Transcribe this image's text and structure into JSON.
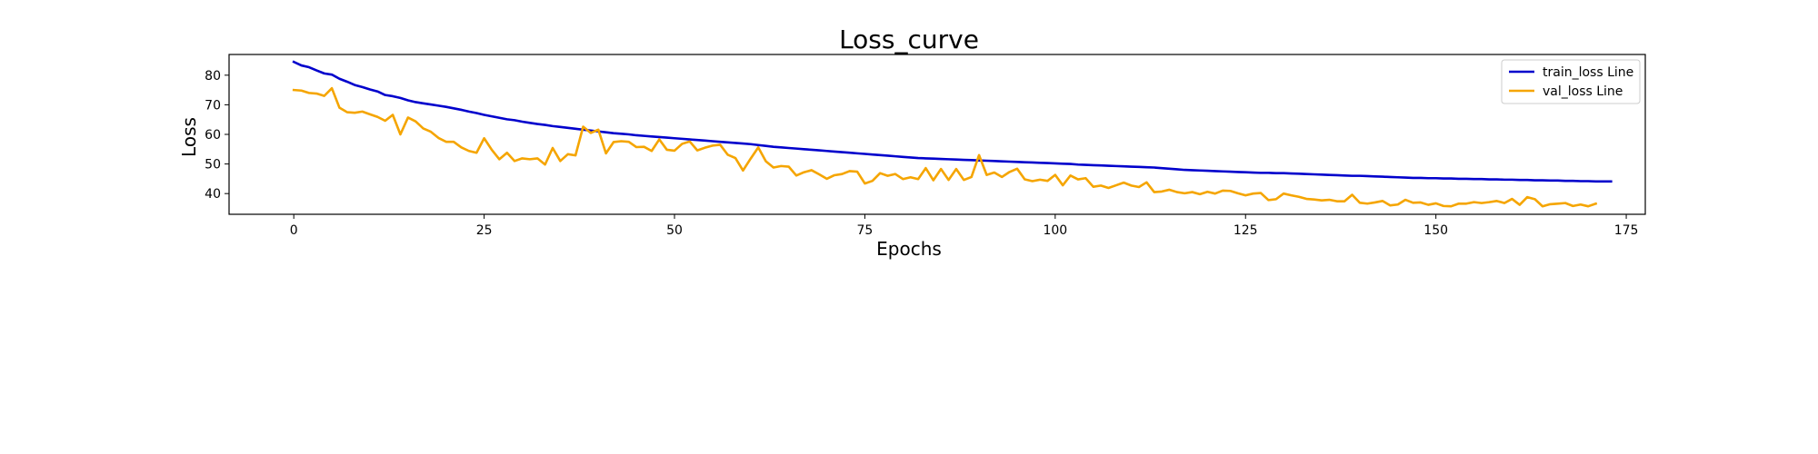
{
  "chart_data": {
    "type": "line",
    "title": "Loss_curve",
    "xlabel": "Epochs",
    "ylabel": "Loss",
    "xlim": [
      -8.5,
      177.5
    ],
    "ylim": [
      33,
      87
    ],
    "xticks": [
      0,
      25,
      50,
      75,
      100,
      125,
      150,
      175
    ],
    "yticks": [
      40,
      50,
      60,
      70,
      80
    ],
    "grid": false,
    "legend_position": "top-right",
    "series": [
      {
        "name": "train_loss Line",
        "color": "#0000cc",
        "values": [
          84.5,
          83.3,
          82.7,
          81.6,
          80.6,
          80.2,
          78.8,
          77.8,
          76.7,
          76.0,
          75.2,
          74.5,
          73.3,
          72.9,
          72.3,
          71.5,
          70.9,
          70.5,
          70.1,
          69.7,
          69.3,
          68.8,
          68.3,
          67.7,
          67.2,
          66.6,
          66.1,
          65.6,
          65.1,
          64.8,
          64.3,
          63.9,
          63.5,
          63.2,
          62.8,
          62.5,
          62.2,
          61.9,
          61.6,
          61.3,
          61.0,
          60.7,
          60.4,
          60.2,
          60.0,
          59.7,
          59.5,
          59.3,
          59.1,
          58.9,
          58.7,
          58.5,
          58.3,
          58.1,
          57.9,
          57.7,
          57.5,
          57.3,
          57.1,
          56.9,
          56.7,
          56.4,
          56.1,
          55.8,
          55.6,
          55.4,
          55.2,
          55.0,
          54.8,
          54.6,
          54.4,
          54.2,
          54.0,
          53.8,
          53.6,
          53.4,
          53.2,
          53.0,
          52.8,
          52.6,
          52.4,
          52.2,
          52.0,
          51.9,
          51.8,
          51.7,
          51.6,
          51.5,
          51.4,
          51.3,
          51.2,
          51.1,
          51.0,
          50.9,
          50.8,
          50.7,
          50.6,
          50.5,
          50.4,
          50.3,
          50.2,
          50.1,
          50.0,
          49.8,
          49.7,
          49.6,
          49.5,
          49.4,
          49.3,
          49.2,
          49.1,
          49.0,
          48.9,
          48.8,
          48.6,
          48.4,
          48.2,
          48.0,
          47.9,
          47.8,
          47.7,
          47.6,
          47.5,
          47.4,
          47.3,
          47.2,
          47.1,
          47.0,
          47.0,
          46.9,
          46.9,
          46.8,
          46.7,
          46.6,
          46.5,
          46.4,
          46.3,
          46.2,
          46.1,
          46.0,
          46.0,
          45.9,
          45.8,
          45.7,
          45.6,
          45.5,
          45.4,
          45.3,
          45.3,
          45.2,
          45.2,
          45.1,
          45.1,
          45.0,
          45.0,
          44.9,
          44.9,
          44.8,
          44.8,
          44.7,
          44.7,
          44.6,
          44.6,
          44.5,
          44.5,
          44.4,
          44.4,
          44.3,
          44.3,
          44.2,
          44.2,
          44.1,
          44.1,
          44.1
        ]
      },
      {
        "name": "val_loss Line",
        "color": "#f5a500",
        "values": [
          75.0,
          74.8,
          74.0,
          73.8,
          73.0,
          75.6,
          69.0,
          67.5,
          67.3,
          67.7,
          66.8,
          65.9,
          64.6,
          66.6,
          60.0,
          65.7,
          64.4,
          62.0,
          60.9,
          58.8,
          57.5,
          57.5,
          55.6,
          54.4,
          53.8,
          58.7,
          54.8,
          51.6,
          53.8,
          51.0,
          51.9,
          51.6,
          51.9,
          49.8,
          55.4,
          51.0,
          53.3,
          52.9,
          62.6,
          60.5,
          61.6,
          53.6,
          57.4,
          57.7,
          57.5,
          55.7,
          55.8,
          54.4,
          58.3,
          54.8,
          54.5,
          56.8,
          57.6,
          54.6,
          55.5,
          56.2,
          56.5,
          53.1,
          52.0,
          47.8,
          51.8,
          55.6,
          50.9,
          48.8,
          49.3,
          49.1,
          46.1,
          47.2,
          47.9,
          46.5,
          45.0,
          46.2,
          46.6,
          47.6,
          47.4,
          43.4,
          44.3,
          46.9,
          46.0,
          46.6,
          44.9,
          45.5,
          44.9,
          48.6,
          44.5,
          48.3,
          44.6,
          48.3,
          44.6,
          45.6,
          53.0,
          46.3,
          47.1,
          45.6,
          47.3,
          48.4,
          44.8,
          44.2,
          44.7,
          44.3,
          46.3,
          42.8,
          46.1,
          44.8,
          45.2,
          42.3,
          42.7,
          41.9,
          42.8,
          43.7,
          42.7,
          42.2,
          43.8,
          40.5,
          40.7,
          41.3,
          40.5,
          40.1,
          40.5,
          39.8,
          40.6,
          40.0,
          41.0,
          40.9,
          40.1,
          39.4,
          40.0,
          40.2,
          37.8,
          38.1,
          40.0,
          39.4,
          38.9,
          38.2,
          38.0,
          37.7,
          37.9,
          37.4,
          37.4,
          39.6,
          36.9,
          36.6,
          37.0,
          37.5,
          36.0,
          36.3,
          37.9,
          36.9,
          37.0,
          36.2,
          36.7,
          35.8,
          35.7,
          36.6,
          36.6,
          37.1,
          36.8,
          37.1,
          37.5,
          36.8,
          38.2,
          36.2,
          38.8,
          38.1,
          35.7,
          36.4,
          36.6,
          36.8,
          35.8,
          36.3,
          35.7,
          36.6
        ]
      }
    ]
  }
}
